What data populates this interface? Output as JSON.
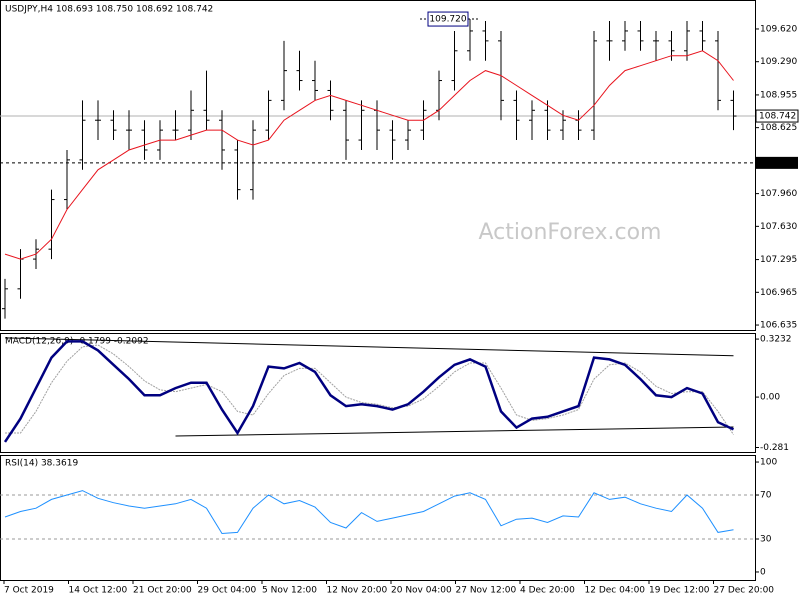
{
  "chart_data": [
    {
      "type": "ohlc",
      "title": "USDJPY,H4  108.693 108.750 108.692 108.742",
      "watermark": "ActionForex.com",
      "open": [
        106.8,
        107.0,
        107.3,
        107.4,
        107.9,
        108.3,
        108.7,
        108.7,
        108.6,
        108.6,
        108.4,
        108.6,
        108.6,
        108.8,
        108.7,
        108.4,
        108.0,
        108.6,
        108.9,
        109.2,
        109.1,
        109.0,
        108.8,
        108.5,
        108.8,
        108.6,
        108.5,
        108.6,
        108.8,
        109.1,
        109.4,
        109.6,
        109.5,
        108.9,
        108.7,
        108.8,
        108.6,
        108.7,
        108.6,
        109.5,
        109.5,
        109.6,
        109.5,
        109.5,
        109.4,
        109.6,
        109.5,
        108.9
      ],
      "high": [
        107.1,
        107.4,
        107.5,
        108.0,
        108.4,
        108.9,
        108.9,
        108.8,
        108.8,
        108.7,
        108.7,
        108.8,
        109.0,
        109.2,
        108.8,
        108.5,
        108.7,
        109.0,
        109.5,
        109.4,
        109.3,
        109.1,
        108.9,
        108.9,
        108.9,
        108.7,
        108.7,
        108.9,
        109.2,
        109.6,
        109.72,
        109.7,
        109.6,
        109.0,
        108.9,
        108.9,
        108.8,
        108.8,
        109.6,
        109.7,
        109.7,
        109.7,
        109.6,
        109.6,
        109.7,
        109.7,
        109.6,
        109.0
      ],
      "low": [
        106.7,
        106.9,
        107.2,
        107.3,
        107.8,
        108.2,
        108.5,
        108.5,
        108.4,
        108.3,
        108.3,
        108.5,
        108.5,
        108.6,
        108.2,
        107.9,
        107.9,
        108.5,
        108.8,
        109.0,
        108.9,
        108.7,
        108.3,
        108.4,
        108.4,
        108.3,
        108.4,
        108.5,
        108.7,
        109.0,
        109.3,
        109.3,
        108.7,
        108.5,
        108.5,
        108.5,
        108.5,
        108.5,
        108.5,
        109.3,
        109.4,
        109.4,
        109.3,
        109.3,
        109.3,
        109.4,
        108.8,
        108.6
      ],
      "close": [
        107.0,
        107.3,
        107.4,
        107.9,
        108.3,
        108.7,
        108.7,
        108.6,
        108.6,
        108.4,
        108.6,
        108.6,
        108.8,
        108.7,
        108.4,
        108.0,
        108.6,
        108.9,
        109.2,
        109.1,
        109.0,
        108.8,
        108.5,
        108.8,
        108.6,
        108.5,
        108.6,
        108.8,
        109.1,
        109.4,
        109.6,
        109.5,
        108.9,
        108.7,
        108.8,
        108.6,
        108.7,
        108.6,
        109.5,
        109.5,
        109.6,
        109.5,
        109.5,
        109.4,
        109.6,
        109.5,
        108.9,
        108.742
      ],
      "bar_color": "#000000",
      "ma": {
        "color": "#e8141e",
        "values": [
          107.35,
          107.3,
          107.35,
          107.5,
          107.8,
          108.0,
          108.2,
          108.3,
          108.4,
          108.45,
          108.5,
          108.5,
          108.55,
          108.6,
          108.6,
          108.5,
          108.45,
          108.5,
          108.7,
          108.8,
          108.9,
          108.95,
          108.9,
          108.85,
          108.8,
          108.75,
          108.7,
          108.7,
          108.8,
          108.95,
          109.1,
          109.2,
          109.15,
          109.05,
          108.95,
          108.85,
          108.75,
          108.7,
          108.85,
          109.05,
          109.2,
          109.25,
          109.3,
          109.35,
          109.35,
          109.4,
          109.3,
          109.1
        ]
      },
      "high_label": {
        "index": 30,
        "value": 109.72,
        "label": "109.720"
      },
      "price_line": {
        "value": 108.742,
        "label": "108.742"
      },
      "level_line": {
        "value": 108.27,
        "label": "108.270"
      },
      "ylim": [
        106.585,
        109.912
      ],
      "yticks": [
        {
          "value": 109.62,
          "label": "109.620"
        },
        {
          "value": 109.29,
          "label": "109.290"
        },
        {
          "value": 108.955,
          "label": "108.955"
        },
        {
          "value": 108.625,
          "label": "108.625"
        },
        {
          "value": 107.96,
          "label": "107.960"
        },
        {
          "value": 107.63,
          "label": "107.630"
        },
        {
          "value": 107.295,
          "label": "107.295"
        },
        {
          "value": 106.965,
          "label": "106.965"
        },
        {
          "value": 106.635,
          "label": "106.635"
        }
      ]
    },
    {
      "type": "macd",
      "title": "MACD(12,26,9) -0.1799 -0.2092",
      "series": [
        {
          "color": "#000080",
          "values": [
            -0.25,
            -0.12,
            0.05,
            0.22,
            0.31,
            0.31,
            0.26,
            0.18,
            0.1,
            0.01,
            0.01,
            0.05,
            0.08,
            0.08,
            -0.07,
            -0.2,
            -0.05,
            0.17,
            0.16,
            0.19,
            0.14,
            0.01,
            -0.05,
            -0.04,
            -0.05,
            -0.07,
            -0.04,
            0.03,
            0.11,
            0.18,
            0.21,
            0.17,
            -0.08,
            -0.17,
            -0.12,
            -0.11,
            -0.08,
            -0.05,
            0.22,
            0.21,
            0.18,
            0.1,
            0.01,
            0.0,
            0.05,
            0.02,
            -0.14,
            -0.1799
          ]
        },
        {
          "color": "#a0a0a0",
          "values": [
            -0.2,
            -0.2,
            -0.08,
            0.08,
            0.2,
            0.28,
            0.29,
            0.24,
            0.17,
            0.09,
            0.04,
            0.03,
            0.05,
            0.07,
            0.03,
            -0.08,
            -0.1,
            0.02,
            0.12,
            0.16,
            0.16,
            0.08,
            0.0,
            -0.03,
            -0.04,
            -0.06,
            -0.05,
            -0.01,
            0.06,
            0.14,
            0.19,
            0.19,
            0.05,
            -0.1,
            -0.13,
            -0.12,
            -0.1,
            -0.07,
            0.1,
            0.18,
            0.19,
            0.14,
            0.06,
            0.02,
            0.03,
            0.03,
            -0.08,
            -0.2092
          ]
        }
      ],
      "trendlines": [
        {
          "x": [
            0,
            47
          ],
          "y": [
            0.33,
            0.23
          ]
        },
        {
          "x": [
            11,
            47
          ],
          "y": [
            -0.217,
            -0.167
          ]
        }
      ],
      "ylim": [
        -0.306,
        0.357
      ],
      "yticks": [
        0.3232,
        {
          "value": 0,
          "label": "0.00"
        },
        -0.281
      ]
    },
    {
      "type": "rsi",
      "title": "RSI(14) 38.3619",
      "color": "#1e90ff",
      "values": [
        50,
        55,
        58,
        66,
        70,
        74,
        67,
        63,
        60,
        58,
        60,
        62,
        66,
        58,
        35,
        36,
        58,
        70,
        62,
        65,
        59,
        45,
        40,
        54,
        46,
        49,
        52,
        55,
        62,
        69,
        72,
        66,
        42,
        48,
        49,
        45,
        51,
        50,
        72,
        66,
        68,
        62,
        58,
        55,
        70,
        58,
        36,
        38.3619
      ],
      "levels": [
        70,
        30
      ],
      "ylim": [
        -7.3,
        106.4
      ],
      "yticks": [
        100,
        70,
        30,
        0
      ],
      "xticks": [
        "7 Oct 2019",
        "14 Oct 12:00",
        "21 Oct 20:00",
        "29 Oct 04:00",
        "5 Nov 12:00",
        "12 Nov 20:00",
        "20 Nov 04:00",
        "27 Nov 12:00",
        "4 Dec 20:00",
        "12 Dec 04:00",
        "19 Dec 12:00",
        "27 Dec 20:00"
      ]
    }
  ]
}
